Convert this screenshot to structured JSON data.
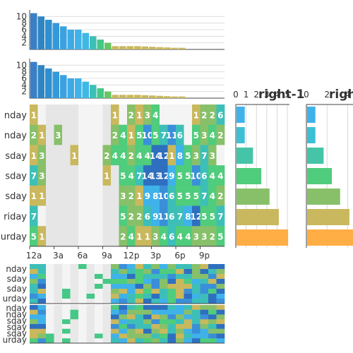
{
  "chart_data": [
    {
      "type": "bar",
      "role": "top-sorted-bars-1",
      "y_ticks": [
        "2",
        "4",
        "6",
        "8",
        "10"
      ],
      "ylim": [
        0,
        12
      ],
      "values": [
        11,
        10,
        9,
        8,
        7,
        6,
        6,
        5,
        4,
        3,
        2,
        1,
        1,
        1,
        1,
        0.9,
        0.8,
        0.7,
        0.6,
        0.5,
        0.5
      ],
      "colors": [
        "#3a7fc6",
        "#2e86c1",
        "#2f8fcf",
        "#3598d8",
        "#3aa2e0",
        "#3daae6",
        "#3fb2ea",
        "#3fb8e6",
        "#3dbfb8",
        "#45c886",
        "#66c663",
        "#c9b85d",
        "#c9b85d",
        "#c9b85d",
        "#c9b85d",
        "#c9b85d",
        "#c9b85d",
        "#c9b85d",
        "#c9b85d",
        "#c9b85d",
        "#c9b85d"
      ]
    },
    {
      "type": "bar",
      "role": "top-sorted-bars-2",
      "y_ticks": [
        "2",
        "4",
        "6",
        "8",
        "10"
      ],
      "ylim": [
        0,
        12
      ],
      "values": [
        11,
        10,
        9,
        8,
        7,
        6,
        6,
        5,
        4,
        3,
        2,
        1,
        1,
        1,
        1,
        0.9,
        0.8,
        0.7,
        0.6,
        0.5,
        0.5
      ],
      "colors": [
        "#3a7fc6",
        "#2e86c1",
        "#2f8fcf",
        "#3598d8",
        "#3aa2e0",
        "#3daae6",
        "#3fb2ea",
        "#3fb8e6",
        "#3dbfb8",
        "#45c886",
        "#66c663",
        "#c9b85d",
        "#c9b85d",
        "#c9b85d",
        "#c9b85d",
        "#c9b85d",
        "#c9b85d",
        "#c9b85d",
        "#c9b85d",
        "#c9b85d",
        "#c9b85d"
      ]
    },
    {
      "type": "heatmap",
      "role": "main-heatmap",
      "row_labels": [
        "nday",
        "nday",
        "sday",
        "sday",
        "sday",
        "riday",
        "urday"
      ],
      "x_ticks": [
        "12a",
        "3a",
        "6a",
        "9a",
        "12p",
        "3p",
        "6p",
        "9p"
      ],
      "values": [
        [
          1,
          0,
          0,
          0,
          0,
          0,
          0,
          0,
          0,
          0,
          1,
          0,
          2,
          1,
          3,
          4,
          0,
          0,
          0,
          0,
          1,
          2,
          2,
          6
        ],
        [
          2,
          1,
          0,
          3,
          0,
          0,
          0,
          0,
          0,
          0,
          2,
          4,
          1,
          5,
          10,
          5,
          7,
          11,
          6,
          0,
          5,
          3,
          4,
          2
        ],
        [
          1,
          3,
          0,
          0,
          0,
          1,
          0,
          0,
          0,
          2,
          4,
          4,
          2,
          4,
          4,
          14,
          12,
          1,
          8,
          5,
          3,
          7,
          3,
          0
        ],
        [
          7,
          3,
          0,
          0,
          0,
          0,
          0,
          0,
          0,
          1,
          0,
          5,
          4,
          7,
          14,
          13,
          12,
          9,
          5,
          5,
          10,
          6,
          4,
          4
        ],
        [
          1,
          1,
          0,
          0,
          0,
          0,
          0,
          0,
          0,
          0,
          0,
          3,
          2,
          1,
          9,
          8,
          10,
          6,
          5,
          5,
          5,
          7,
          4,
          2
        ],
        [
          7,
          0,
          0,
          0,
          0,
          0,
          0,
          0,
          0,
          0,
          0,
          5,
          2,
          2,
          6,
          9,
          11,
          6,
          7,
          8,
          12,
          5,
          5,
          7
        ],
        [
          5,
          1,
          0,
          0,
          0,
          0,
          0,
          0,
          0,
          0,
          0,
          2,
          4,
          1,
          1,
          3,
          4,
          6,
          4,
          4,
          3,
          3,
          2,
          5
        ]
      ],
      "labels": [
        [
          "1",
          "",
          "",
          "",
          "",
          "",
          "",
          "",
          "",
          "",
          "1",
          "",
          "2",
          "1",
          "3",
          "4",
          "",
          "",
          "",
          "",
          "1",
          "2",
          "2",
          "6"
        ],
        [
          "2",
          "1",
          "",
          "3",
          "",
          "",
          "",
          "",
          "",
          "",
          "2",
          "4",
          "1",
          "5",
          "10",
          "5",
          "7",
          "11",
          "6",
          "",
          "5",
          "3",
          "4",
          "2"
        ],
        [
          "1",
          "3",
          "",
          "",
          "",
          "1",
          "",
          "",
          "",
          "2",
          "4",
          "4",
          "2",
          "4",
          "4",
          "14",
          "12",
          "1",
          "8",
          "5",
          "3",
          "7",
          "3",
          ""
        ],
        [
          "7",
          "3",
          "",
          "",
          "",
          "",
          "",
          "",
          "",
          "1",
          "",
          "5",
          "4",
          "7",
          "14",
          "13",
          "12",
          "9",
          "5",
          "5",
          "10",
          "6",
          "4",
          "4"
        ],
        [
          "1",
          "1",
          "",
          "",
          "",
          "",
          "",
          "",
          "",
          "",
          "",
          "3",
          "2",
          "1",
          "9",
          "8",
          "10",
          "6",
          "5",
          "5",
          "5",
          "7",
          "4",
          "2"
        ],
        [
          "7",
          "",
          "",
          "",
          "",
          "",
          "",
          "",
          "",
          "",
          "",
          "5",
          "2",
          "2",
          "6",
          "9",
          "11",
          "6",
          "7",
          "8",
          "12",
          "5",
          "5",
          "7"
        ],
        [
          "5",
          "1",
          "",
          "",
          "",
          "",
          "",
          "",
          "",
          "",
          "",
          "2",
          "4",
          "1",
          "1",
          "3",
          "4",
          "6",
          "4",
          "4",
          "3",
          "3",
          "2",
          "5"
        ]
      ]
    },
    {
      "type": "bar",
      "role": "right-bars-1",
      "title": "right-1",
      "x_ticks": [
        "0",
        "1",
        "2",
        "3",
        "4",
        "5"
      ],
      "values": [
        0.8,
        0.8,
        1.6,
        2.4,
        3.2,
        4.1,
        5.0
      ],
      "colors": [
        "#3fb2ea",
        "#3dbfd6",
        "#45c4a8",
        "#4fcc7c",
        "#87c069",
        "#c9b85d",
        "#ffad45"
      ]
    },
    {
      "type": "bar",
      "role": "right-bars-2",
      "title": "righ",
      "x_ticks": [
        "0",
        "2",
        "4"
      ],
      "values": [
        0.8,
        0.8,
        1.6,
        2.4,
        3.2,
        4.1,
        5.0
      ],
      "colors": [
        "#3fb2ea",
        "#3dbfd6",
        "#45c4a8",
        "#4fcc7c",
        "#87c069",
        "#c9b85d",
        "#ffad45"
      ]
    },
    {
      "type": "heatmap",
      "role": "bottom-heatmap-1",
      "row_labels": [
        "nday",
        "sday",
        "sday",
        "urday"
      ]
    },
    {
      "type": "heatmap",
      "role": "bottom-heatmap-2",
      "row_labels": [
        "nday",
        "nday",
        "sday",
        "sday",
        "sday",
        "urday"
      ]
    }
  ],
  "colors": {
    "palette_low_to_high": [
      "#c9b85d",
      "#87c069",
      "#4fcc7c",
      "#3dbfb8",
      "#3fb2ea",
      "#3a8fd9",
      "#2e6fbf"
    ],
    "empty_cell_a": "#f4f4f4",
    "empty_cell_b": "#e6e6e6",
    "highlight": "#ffad45"
  }
}
